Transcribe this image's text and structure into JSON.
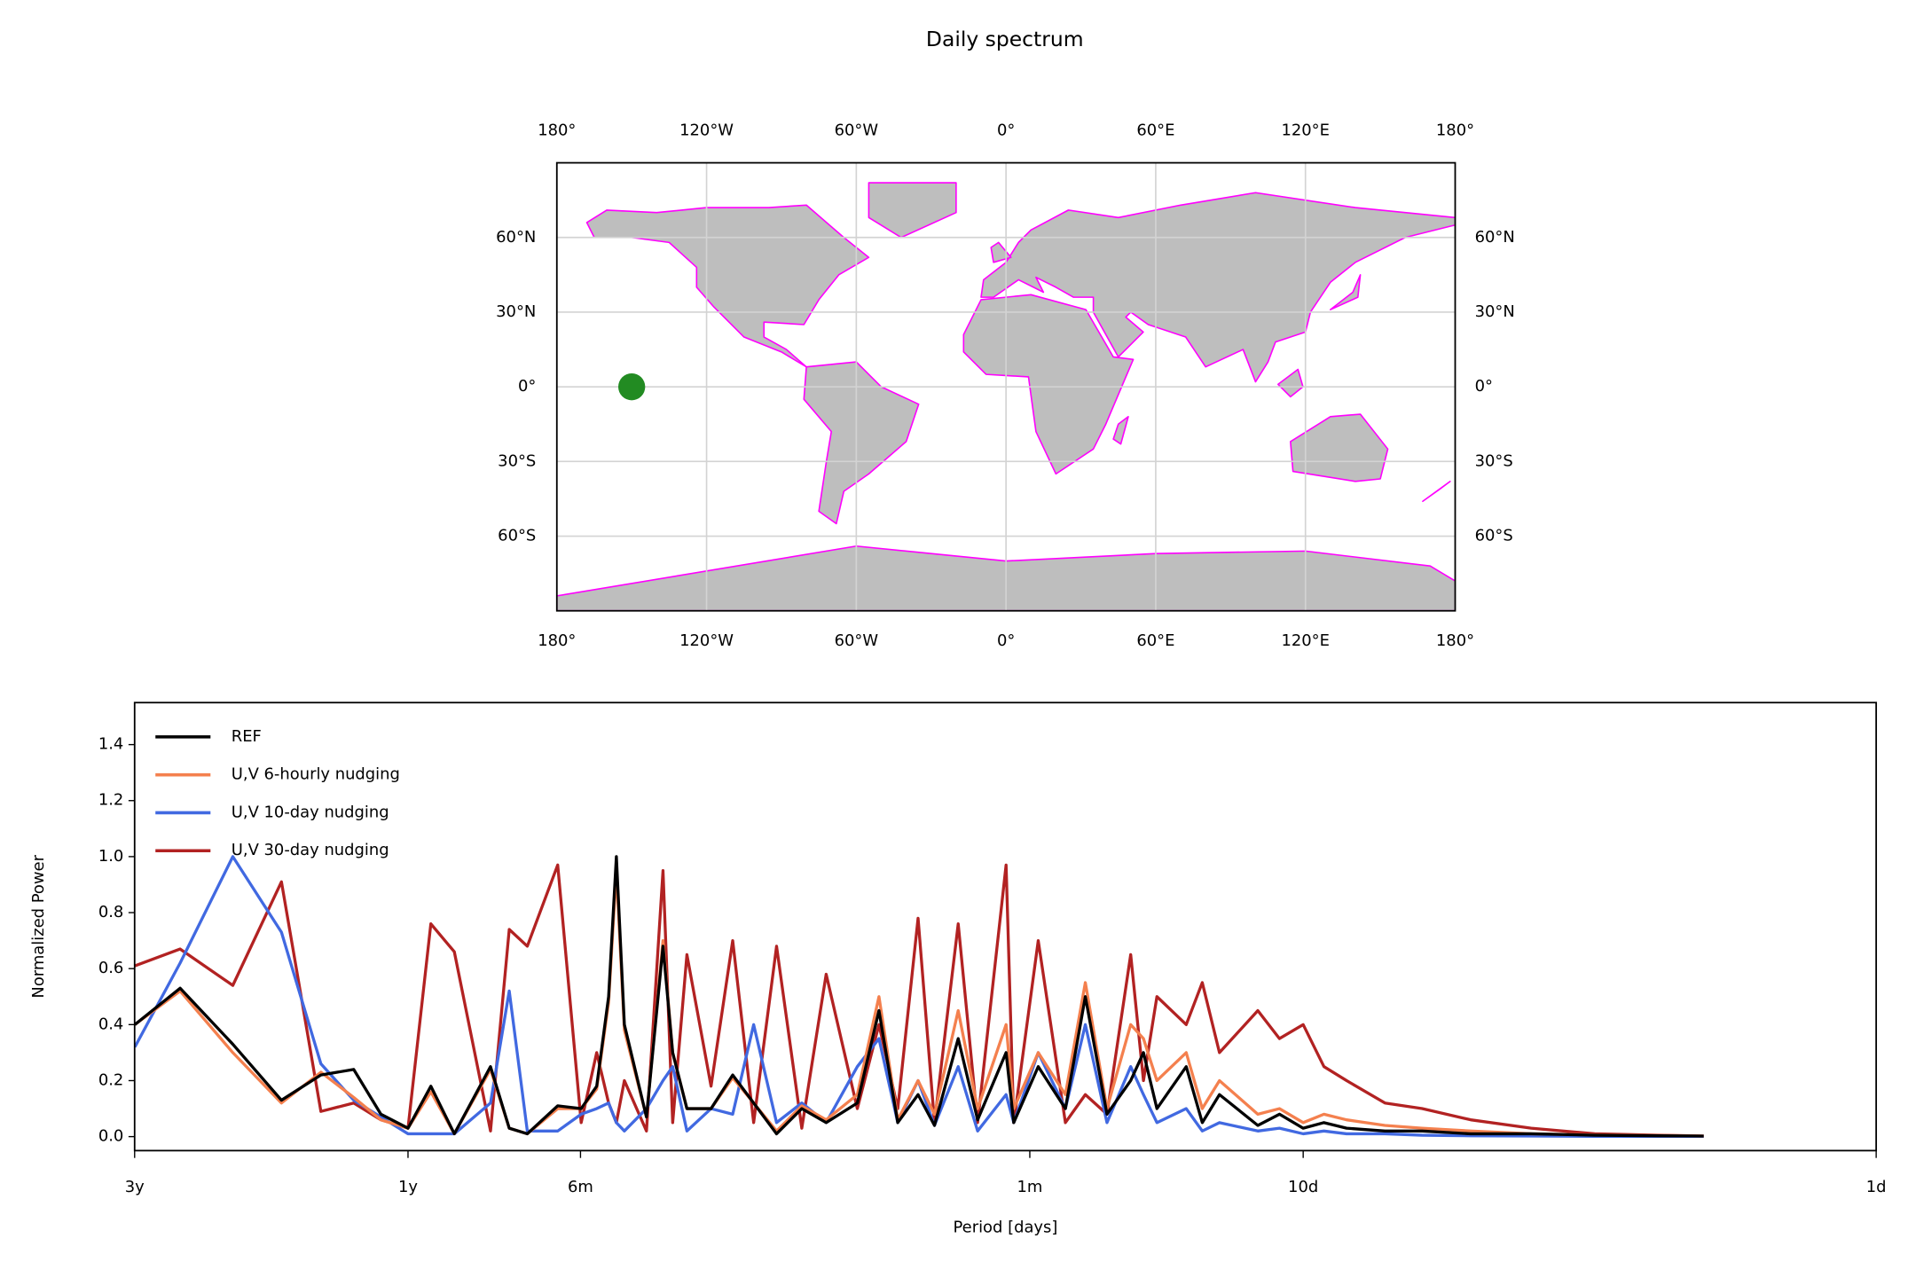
{
  "title": "Daily spectrum",
  "chart_data": [
    {
      "type": "map",
      "xlim": [
        -180,
        180
      ],
      "ylim": [
        -90,
        90
      ],
      "xticks": [
        {
          "value": -180,
          "label": "180°"
        },
        {
          "value": -120,
          "label": "120°W"
        },
        {
          "value": -60,
          "label": "60°W"
        },
        {
          "value": 0,
          "label": "0°"
        },
        {
          "value": 60,
          "label": "60°E"
        },
        {
          "value": 120,
          "label": "120°E"
        },
        {
          "value": 180,
          "label": "180°"
        }
      ],
      "yticks": [
        {
          "value": -60,
          "label": "60°S"
        },
        {
          "value": -30,
          "label": "30°S"
        },
        {
          "value": 0,
          "label": "0°"
        },
        {
          "value": 30,
          "label": "30°N"
        },
        {
          "value": 60,
          "label": "60°N"
        }
      ],
      "grid": true,
      "land_color": "#bebebe",
      "coast_color": "#ff00ff",
      "points": {
        "x": [
          -150
        ],
        "y": [
          0
        ],
        "color": "#228b22"
      }
    },
    {
      "type": "line",
      "log_x": true,
      "xlabel": "Period [days]",
      "ylabel": "Normalized Power",
      "legend": "upper left",
      "xlim": [
        1095,
        1
      ],
      "ylim": [
        -0.05,
        1.55
      ],
      "xticks": [
        {
          "value": 1095,
          "label": "3y"
        },
        {
          "value": 365,
          "label": "1y"
        },
        {
          "value": 182.5,
          "label": "6m"
        },
        {
          "value": 30,
          "label": "1m"
        },
        {
          "value": 10,
          "label": "10d"
        },
        {
          "value": 1,
          "label": "1d"
        }
      ],
      "yticks": [
        {
          "value": 0,
          "label": "0.0"
        },
        0.2,
        0.4,
        0.6,
        0.8,
        {
          "value": 1,
          "label": "1.0"
        },
        1.2,
        1.4
      ],
      "x": [
        1094,
        912,
        738,
        607,
        518,
        454,
        407,
        365,
        333,
        303,
        262,
        243,
        226,
        200,
        182,
        171,
        163,
        158,
        153,
        140,
        131,
        126,
        119,
        108,
        99,
        91,
        83,
        75,
        68,
        60,
        55,
        51,
        47,
        44,
        40,
        37,
        33,
        32,
        29,
        26,
        24,
        22,
        20,
        19,
        18,
        16,
        15,
        14,
        12,
        11,
        10,
        9.2,
        8.4,
        7.2,
        6.2,
        5.1,
        4.0,
        3.1,
        2.4,
        2.0
      ],
      "series": [
        {
          "name": "REF",
          "color": "#000000",
          "values": [
            0.4,
            0.53,
            0.33,
            0.13,
            0.22,
            0.24,
            0.08,
            0.03,
            0.18,
            0.01,
            0.25,
            0.03,
            0.01,
            0.11,
            0.1,
            0.18,
            0.5,
            1.0,
            0.4,
            0.07,
            0.68,
            0.3,
            0.1,
            0.1,
            0.22,
            0.12,
            0.01,
            0.1,
            0.05,
            0.12,
            0.45,
            0.05,
            0.15,
            0.04,
            0.35,
            0.06,
            0.3,
            0.05,
            0.25,
            0.1,
            0.5,
            0.08,
            0.2,
            0.3,
            0.1,
            0.25,
            0.05,
            0.15,
            0.04,
            0.08,
            0.03,
            0.05,
            0.03,
            0.02,
            0.02,
            0.01,
            0.01,
            0.005,
            0.003,
            0.002
          ]
        },
        {
          "name": "U,V 6-hourly nudging",
          "color": "#f4804e",
          "values": [
            0.4,
            0.52,
            0.3,
            0.12,
            0.23,
            0.14,
            0.06,
            0.03,
            0.16,
            0.01,
            0.24,
            0.03,
            0.01,
            0.1,
            0.1,
            0.17,
            0.48,
            0.95,
            0.38,
            0.07,
            0.7,
            0.3,
            0.1,
            0.1,
            0.21,
            0.12,
            0.02,
            0.11,
            0.06,
            0.15,
            0.5,
            0.06,
            0.2,
            0.08,
            0.45,
            0.1,
            0.4,
            0.1,
            0.3,
            0.15,
            0.55,
            0.1,
            0.4,
            0.35,
            0.2,
            0.3,
            0.1,
            0.2,
            0.08,
            0.1,
            0.05,
            0.08,
            0.06,
            0.04,
            0.03,
            0.02,
            0.01,
            0.006,
            0.004,
            0.002
          ]
        },
        {
          "name": "U,V 10-day nudging",
          "color": "#4169e1",
          "values": [
            0.32,
            0.62,
            1.0,
            0.73,
            0.26,
            0.13,
            0.07,
            0.01,
            0.01,
            0.01,
            0.12,
            0.52,
            0.02,
            0.02,
            0.08,
            0.1,
            0.12,
            0.05,
            0.02,
            0.1,
            0.2,
            0.25,
            0.02,
            0.1,
            0.08,
            0.4,
            0.05,
            0.12,
            0.05,
            0.25,
            0.35,
            0.05,
            0.2,
            0.04,
            0.25,
            0.02,
            0.15,
            0.05,
            0.3,
            0.1,
            0.4,
            0.05,
            0.25,
            0.15,
            0.05,
            0.1,
            0.02,
            0.05,
            0.02,
            0.03,
            0.01,
            0.02,
            0.01,
            0.01,
            0.005,
            0.003,
            0.002,
            0.001,
            0.001,
            0.001
          ]
        },
        {
          "name": "U,V 30-day nudging",
          "color": "#b22222",
          "values": [
            0.61,
            0.67,
            0.54,
            0.91,
            0.09,
            0.12,
            0.06,
            0.03,
            0.76,
            0.66,
            0.02,
            0.74,
            0.68,
            0.97,
            0.05,
            0.3,
            0.12,
            0.05,
            0.2,
            0.02,
            0.95,
            0.05,
            0.65,
            0.18,
            0.7,
            0.05,
            0.68,
            0.03,
            0.58,
            0.1,
            0.4,
            0.1,
            0.78,
            0.05,
            0.76,
            0.05,
            0.97,
            0.05,
            0.7,
            0.05,
            0.15,
            0.08,
            0.65,
            0.2,
            0.5,
            0.4,
            0.55,
            0.3,
            0.45,
            0.35,
            0.4,
            0.25,
            0.2,
            0.12,
            0.1,
            0.06,
            0.03,
            0.01,
            0.005,
            0.002
          ]
        }
      ]
    }
  ]
}
